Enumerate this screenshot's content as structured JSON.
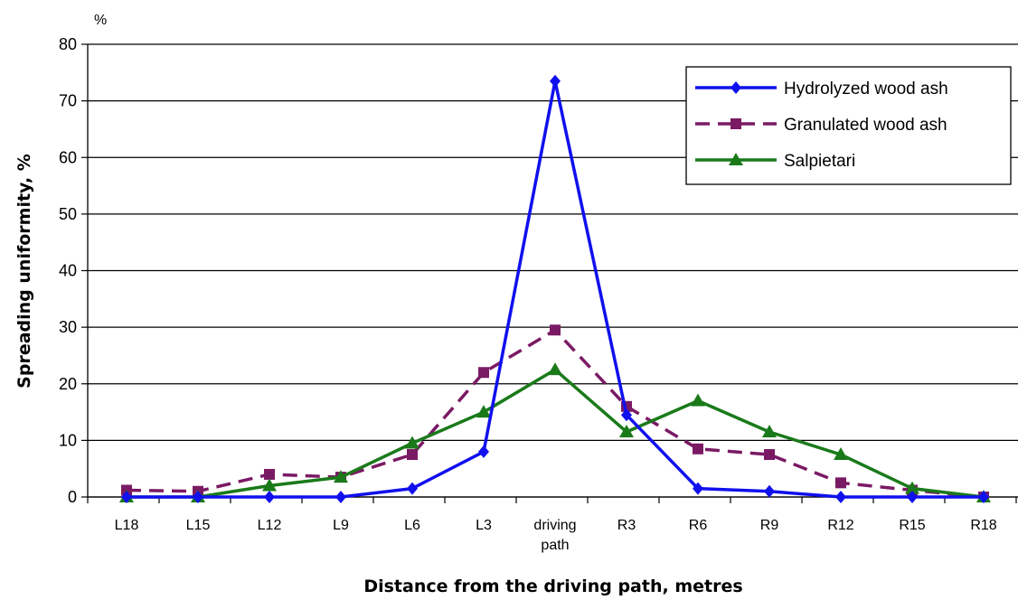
{
  "chart_data": {
    "type": "line",
    "categories": [
      "L18",
      "L15",
      "L12",
      "L9",
      "L6",
      "L3",
      "driving path",
      "R3",
      "R6",
      "R9",
      "R12",
      "R15",
      "R18"
    ],
    "category_labels": [
      [
        "L18"
      ],
      [
        "L15"
      ],
      [
        "L12"
      ],
      [
        "L9"
      ],
      [
        "L6"
      ],
      [
        "L3"
      ],
      [
        "driving",
        "path"
      ],
      [
        "R3"
      ],
      [
        "R6"
      ],
      [
        "R9"
      ],
      [
        "R12"
      ],
      [
        "R15"
      ],
      [
        "R18"
      ]
    ],
    "series": [
      {
        "name": "Hydrolyzed wood ash",
        "color": "#1010ee",
        "marker": "diamond",
        "dash": "solid",
        "values": [
          0,
          0,
          0,
          0,
          1.5,
          8,
          73.5,
          14.5,
          1.5,
          1,
          0,
          0,
          0
        ]
      },
      {
        "name": "Granulated wood ash",
        "color": "#7a1a64",
        "marker": "square",
        "dash": "dashed",
        "values": [
          1.2,
          1,
          4,
          3.5,
          7.5,
          22,
          29.5,
          16,
          8.5,
          7.5,
          2.5,
          1.2,
          0
        ]
      },
      {
        "name": "Salpietari",
        "color": "#1a7a1a",
        "marker": "triangle",
        "dash": "solid",
        "values": [
          0,
          0,
          2,
          3.5,
          9.5,
          15,
          22.5,
          11.5,
          17,
          11.5,
          7.5,
          1.5,
          0
        ]
      }
    ],
    "ylim": [
      0,
      80
    ],
    "yticks": [
      0,
      10,
      20,
      30,
      40,
      50,
      60,
      70,
      80
    ],
    "ylabel": "Spreading uniformity, %",
    "y_unit": "%",
    "xlabel": "Distance from the driving path, metres",
    "grid": "horizontal",
    "legend_position": "top-right"
  }
}
